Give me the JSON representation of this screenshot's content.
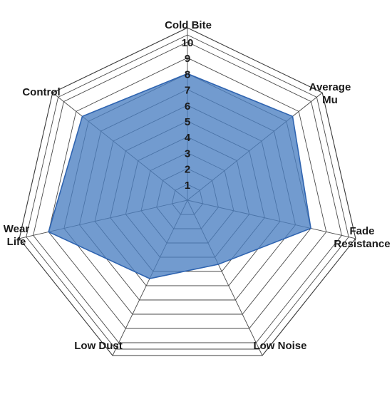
{
  "chart_data": {
    "type": "radar",
    "categories": [
      "Cold Bite",
      "Average Mu",
      "Fade Resistance",
      "Low Noise",
      "Low Dust",
      "Wear Life",
      "Control"
    ],
    "category_label_lines": [
      [
        "Cold Bite"
      ],
      [
        "Average",
        "Mu"
      ],
      [
        "Fade",
        "Resistance"
      ],
      [
        "Low Noise"
      ],
      [
        "Low Dust"
      ],
      [
        "Wear",
        "Life"
      ],
      [
        "Control"
      ]
    ],
    "ticks": [
      "1",
      "2",
      "3",
      "4",
      "5",
      "6",
      "7",
      "8",
      "9",
      "10"
    ],
    "range": [
      0,
      10
    ],
    "series": [
      {
        "values": [
          8,
          8.5,
          8,
          4.5,
          5.5,
          9,
          8.5
        ]
      }
    ],
    "colors": {
      "fill": "#4a7fc1",
      "stroke": "#2f64b0",
      "grid": "#4a4a4a"
    }
  }
}
